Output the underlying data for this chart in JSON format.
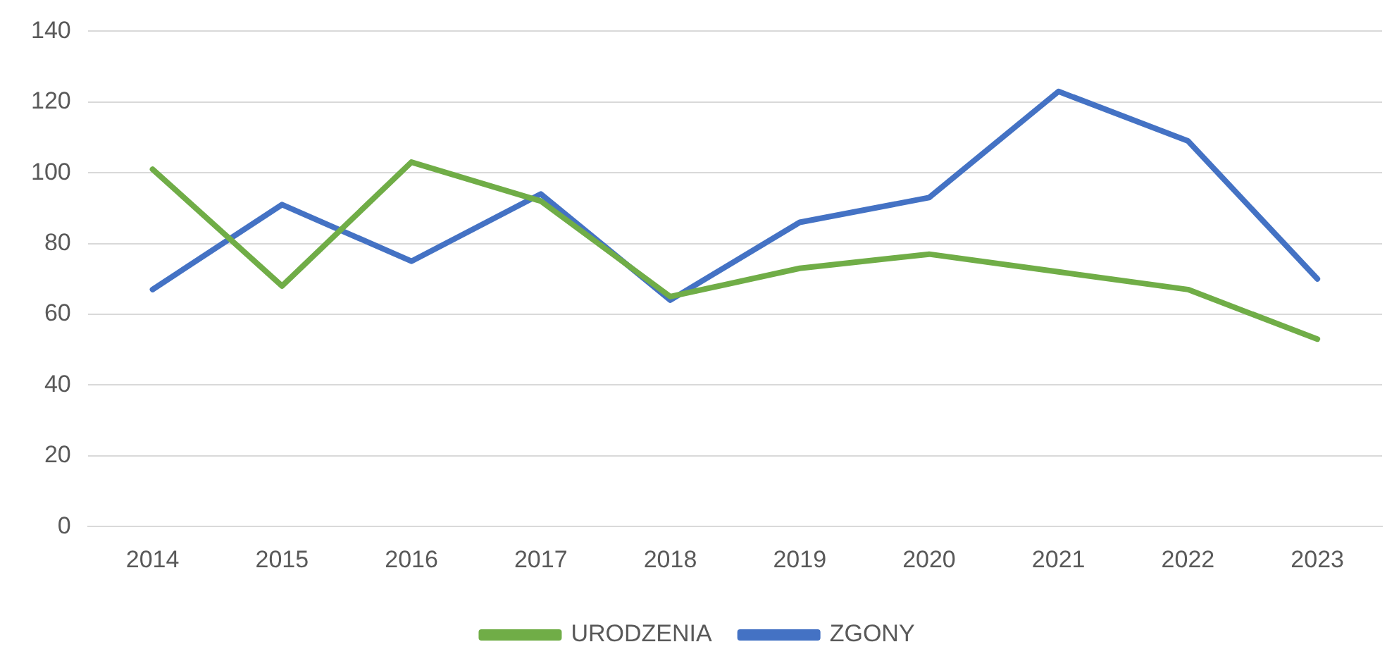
{
  "chart_data": {
    "type": "line",
    "categories": [
      "2014",
      "2015",
      "2016",
      "2017",
      "2018",
      "2019",
      "2020",
      "2021",
      "2022",
      "2023"
    ],
    "series": [
      {
        "name": "URODZENIA",
        "color": "#70ad47",
        "values": [
          101,
          68,
          103,
          92,
          65,
          73,
          77,
          72,
          67,
          53
        ]
      },
      {
        "name": "ZGONY",
        "color": "#4472c4",
        "values": [
          67,
          91,
          75,
          94,
          64,
          86,
          93,
          123,
          109,
          70
        ]
      }
    ],
    "ylim": [
      0,
      140
    ],
    "yticks": [
      0,
      20,
      40,
      60,
      80,
      100,
      120,
      140
    ],
    "grid": "y",
    "legend": "bottom",
    "marker": "none",
    "line_style": "solid"
  }
}
